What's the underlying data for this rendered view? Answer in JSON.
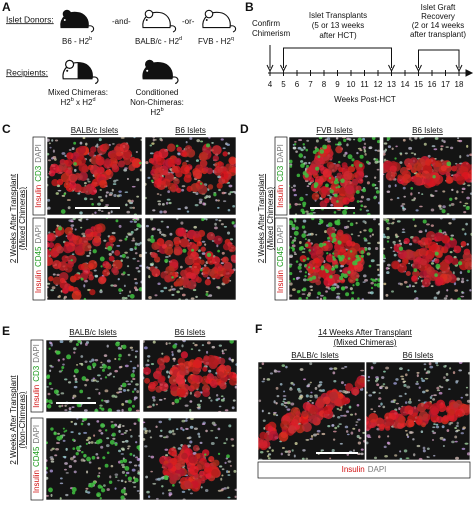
{
  "panel_a": {
    "label": "A",
    "donors_title": "Islet Donors:",
    "donors": [
      [
        "B6 - H2",
        "b"
      ],
      [
        "BALB/c - H2",
        "d"
      ],
      [
        "FVB - H2",
        "q"
      ]
    ],
    "connectors": [
      "-and-",
      "-or-"
    ],
    "recipients_title": "Recipients:",
    "recipients": [
      [
        [
          "Mixed Chimeras:"
        ],
        [
          "H2",
          "b",
          " x H2",
          "d"
        ]
      ],
      [
        [
          "Conditioned"
        ],
        [
          "Non-Chimeras:"
        ],
        [
          "H2",
          "b"
        ]
      ]
    ]
  },
  "panel_b": {
    "label": "B",
    "chimerism": [
      "Confirm",
      "Chimerism"
    ],
    "transplants": [
      "Islet Transplants",
      "(5 or 13 weeks",
      "after HCT)"
    ],
    "recovery": [
      "Islet Graft",
      "Recovery",
      "(2 or 14 weeks",
      "after transplant)"
    ],
    "weeks": [
      4,
      5,
      6,
      7,
      8,
      9,
      10,
      11,
      12,
      13,
      14,
      15,
      16,
      17,
      18
    ],
    "xlabel": "Weeks Post-HCT"
  },
  "panel_c": {
    "label": "C",
    "columns": [
      "BALB/c Islets",
      "B6 Islets"
    ],
    "side": [
      "2 Weeks After Transplant",
      "(Mixed Chimeras)"
    ],
    "rows": [
      [
        "Insulin",
        "CD3",
        "DAPI"
      ],
      [
        "Insulin",
        "CD45",
        "DAPI"
      ]
    ]
  },
  "panel_d": {
    "label": "D",
    "columns": [
      "FVB Islets",
      "B6 Islets"
    ],
    "side": [
      "2 Weeks After Transplant",
      "(Mixed Chimeras)"
    ],
    "rows": [
      [
        "Insulin",
        "CD3",
        "DAPI"
      ],
      [
        "Insulin",
        "CD45",
        "DAPI"
      ]
    ]
  },
  "panel_e": {
    "label": "E",
    "columns": [
      "BALB/c Islets",
      "B6 Islets"
    ],
    "side": [
      "2 Weeks After Transplant",
      "(Non-Chimeras)"
    ],
    "rows": [
      [
        "Insulin",
        "CD3",
        "DAPI"
      ],
      [
        "Insulin",
        "CD45",
        "DAPI"
      ]
    ]
  },
  "panel_f": {
    "label": "F",
    "title": [
      "14 Weeks After Transplant",
      "(Mixed Chimeras)"
    ],
    "columns": [
      "BALB/c Islets",
      "B6 Islets"
    ],
    "stain": [
      "Insulin",
      "DAPI"
    ]
  }
}
